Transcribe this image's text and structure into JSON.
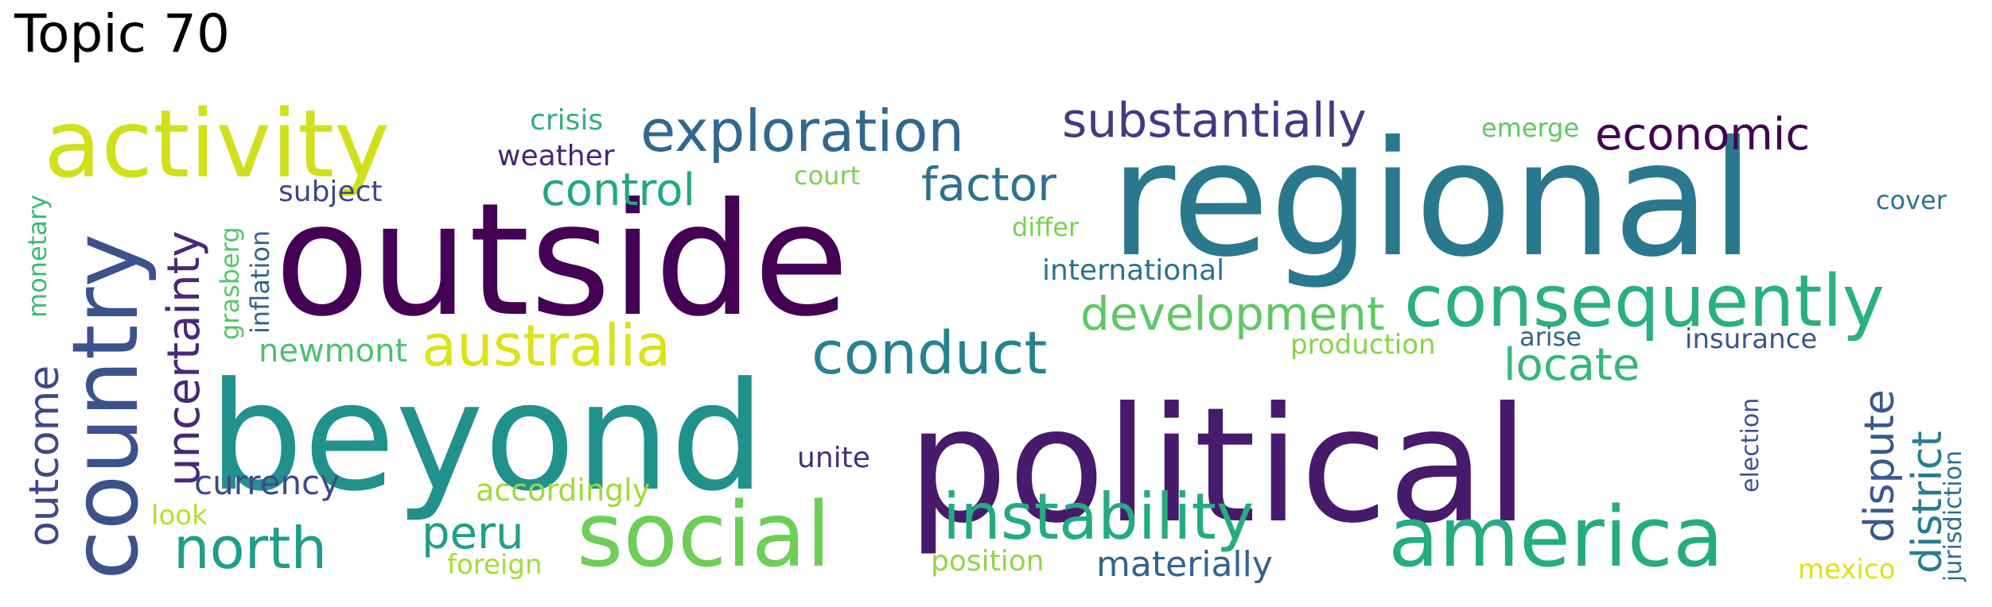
{
  "title": "Topic 70",
  "words": [
    {
      "text": "outside",
      "color": "#440154"
    },
    {
      "text": "regional",
      "color": "#2a788e"
    },
    {
      "text": "beyond",
      "color": "#21918c"
    },
    {
      "text": "political",
      "color": "#481a6c"
    },
    {
      "text": "country",
      "color": "#3b528b"
    },
    {
      "text": "activity",
      "color": "#d0e11c"
    },
    {
      "text": "exploration",
      "color": "#31688e"
    },
    {
      "text": "substantially",
      "color": "#443983"
    },
    {
      "text": "economic",
      "color": "#440154"
    },
    {
      "text": "consequently",
      "color": "#2ab07f"
    },
    {
      "text": "social",
      "color": "#6ece58"
    },
    {
      "text": "america",
      "color": "#25ac82"
    },
    {
      "text": "instability",
      "color": "#25ab82"
    },
    {
      "text": "australia",
      "color": "#dde318"
    },
    {
      "text": "conduct",
      "color": "#26828e"
    },
    {
      "text": "development",
      "color": "#5ec962"
    },
    {
      "text": "north",
      "color": "#1f9e89"
    },
    {
      "text": "control",
      "color": "#22a884"
    },
    {
      "text": "factor",
      "color": "#2c728e"
    },
    {
      "text": "uncertainty",
      "color": "#482878"
    },
    {
      "text": "outcome",
      "color": "#3e4989"
    },
    {
      "text": "locate",
      "color": "#35b779"
    },
    {
      "text": "dispute",
      "color": "#38598c"
    },
    {
      "text": "district",
      "color": "#287d8e"
    },
    {
      "text": "peru",
      "color": "#1fa088"
    },
    {
      "text": "currency",
      "color": "#3e4a89"
    },
    {
      "text": "materially",
      "color": "#33638d"
    },
    {
      "text": "crisis",
      "color": "#2db27d"
    },
    {
      "text": "weather",
      "color": "#482576"
    },
    {
      "text": "subject",
      "color": "#3f4788"
    },
    {
      "text": "court",
      "color": "#7ad151"
    },
    {
      "text": "emerge",
      "color": "#5ec962"
    },
    {
      "text": "cover",
      "color": "#2c738e"
    },
    {
      "text": "differ",
      "color": "#7ad151"
    },
    {
      "text": "international",
      "color": "#2d708e"
    },
    {
      "text": "newmont",
      "color": "#4ac16d"
    },
    {
      "text": "production",
      "color": "#86d549"
    },
    {
      "text": "arise",
      "color": "#32658e"
    },
    {
      "text": "insurance",
      "color": "#39568c"
    },
    {
      "text": "monetary",
      "color": "#3bbb75"
    },
    {
      "text": "grasberg",
      "color": "#56c667"
    },
    {
      "text": "inflation",
      "color": "#34618d"
    },
    {
      "text": "unite",
      "color": "#46307e"
    },
    {
      "text": "accordingly",
      "color": "#9fda3a"
    },
    {
      "text": "look",
      "color": "#b5de2b"
    },
    {
      "text": "foreign",
      "color": "#a5db36"
    },
    {
      "text": "position",
      "color": "#8fd744"
    },
    {
      "text": "mexico",
      "color": "#dde318"
    },
    {
      "text": "election",
      "color": "#3a548c"
    },
    {
      "text": "jurisdiction",
      "color": "#2e6e8e"
    }
  ]
}
